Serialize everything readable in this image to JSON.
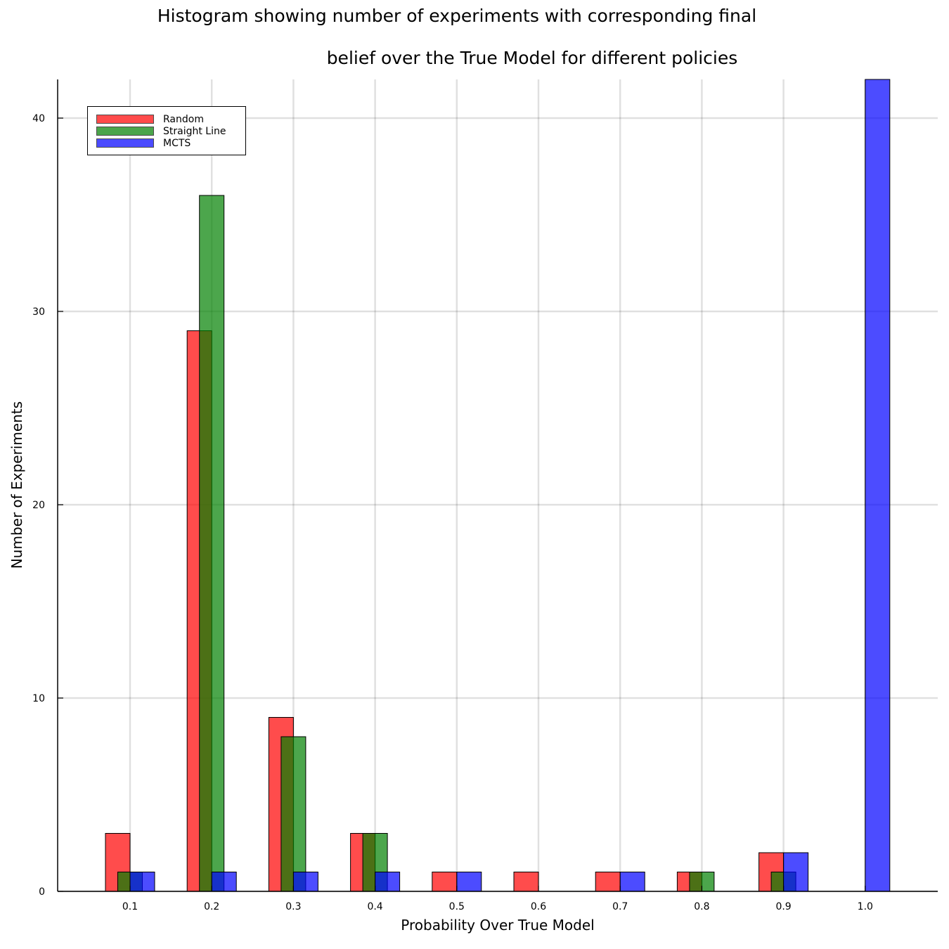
{
  "chart_data": {
    "type": "bar",
    "title": [
      "Histogram showing number of experiments with corresponding final",
      "belief over the True Model for different policies"
    ],
    "xlabel": "Probability Over True Model",
    "ylabel": "Number of Experiments",
    "categories": [
      "0.1",
      "0.2",
      "0.3",
      "0.4",
      "0.5",
      "0.6",
      "0.7",
      "0.8",
      "0.9",
      "1.0"
    ],
    "ylim": [
      0,
      42
    ],
    "yticks": [
      0,
      10,
      20,
      30,
      40
    ],
    "grid": true,
    "legend_position": "top-left",
    "series": [
      {
        "name": "Random",
        "color": "#ff0000",
        "values": [
          3,
          29,
          9,
          3,
          1,
          1,
          1,
          1,
          2,
          0
        ]
      },
      {
        "name": "Straight Line",
        "color": "#008000",
        "values": [
          1,
          36,
          8,
          3,
          0,
          0,
          0,
          1,
          1,
          0
        ]
      },
      {
        "name": "MCTS",
        "color": "#0000ff",
        "values": [
          1,
          1,
          1,
          1,
          1,
          0,
          1,
          0,
          2,
          42
        ]
      }
    ]
  }
}
